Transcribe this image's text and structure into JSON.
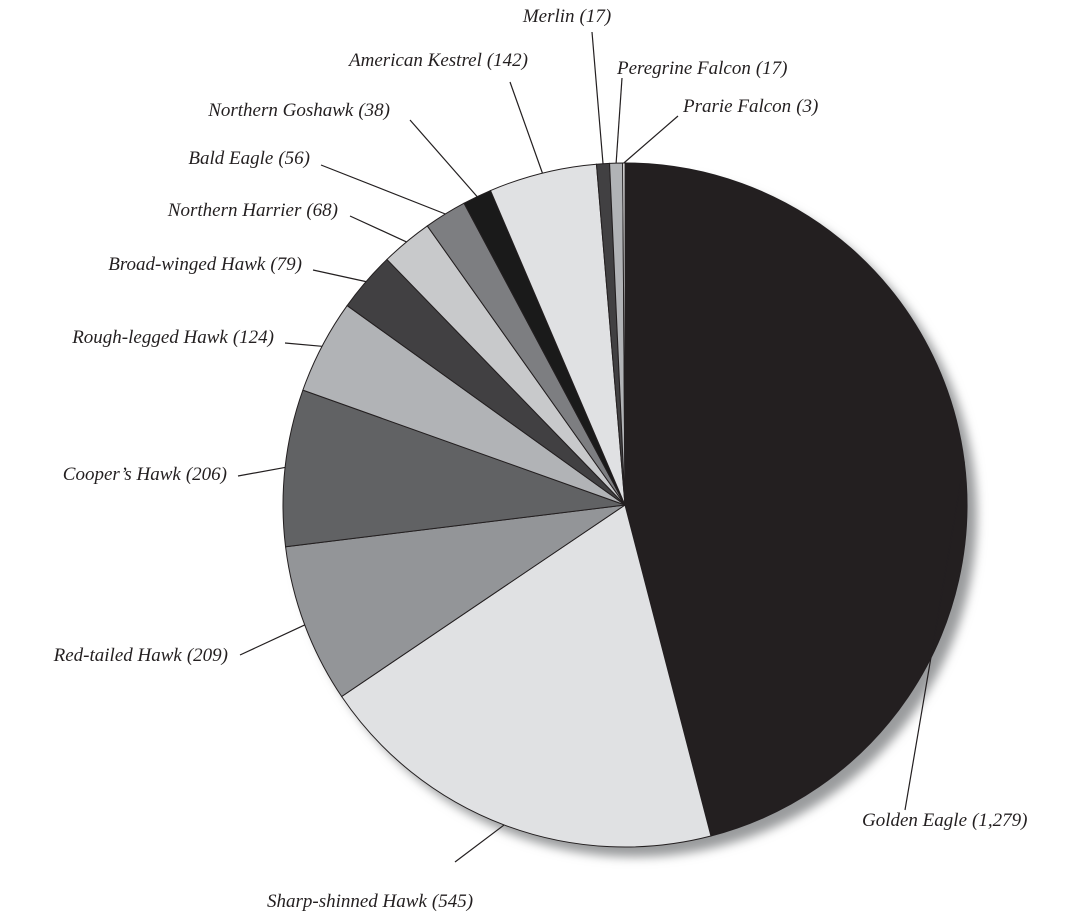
{
  "chart_data": {
    "type": "pie",
    "categories": [
      "Golden Eagle",
      "Sharp-shinned Hawk",
      "Red-tailed Hawk",
      "Cooper’s Hawk",
      "Rough-legged Hawk",
      "Broad-winged Hawk",
      "Northern Harrier",
      "Bald Eagle",
      "Northern Goshawk",
      "American Kestrel",
      "Merlin",
      "Peregrine Falcon",
      "Prarie Falcon"
    ],
    "values": [
      1279,
      545,
      209,
      206,
      124,
      79,
      68,
      56,
      38,
      142,
      17,
      17,
      3
    ],
    "value_labels": [
      "(1,279)",
      "(545)",
      "(209)",
      "(206)",
      "(124)",
      "(79)",
      "(68)",
      "(56)",
      "(38)",
      "(142)",
      "(17)",
      "(17)",
      "(3)"
    ],
    "colors": [
      "#231f20",
      "#e0e1e3",
      "#939598",
      "#616264",
      "#b1b3b6",
      "#414042",
      "#c8c9cb",
      "#7d7e81",
      "#1a1a1a",
      "#e0e1e3",
      "#414042",
      "#b1b3b6",
      "#ffffff"
    ]
  }
}
